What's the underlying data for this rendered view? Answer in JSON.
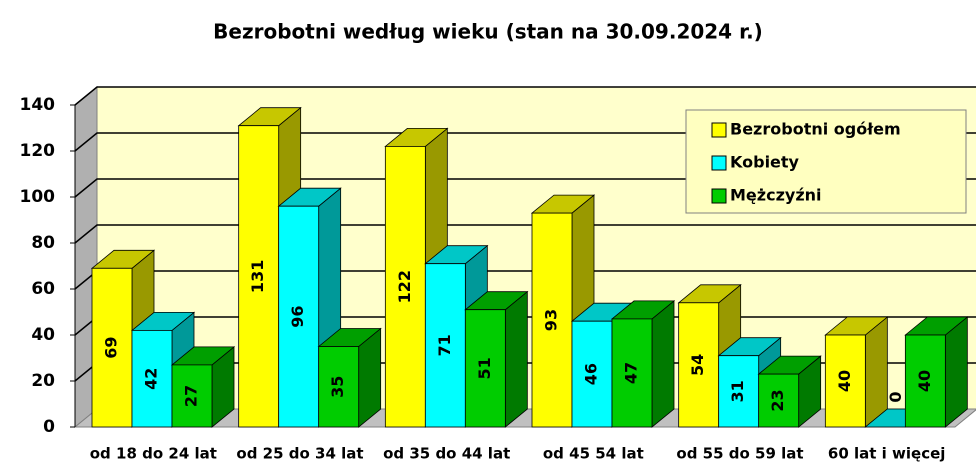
{
  "chart_data": {
    "type": "bar3d",
    "title": "Bezrobotni według wieku (stan na 30.09.2024 r.)",
    "categories": [
      "od 18 do 24 lat",
      "od 25 do 34 lat",
      "od 35 do 44 lat",
      "od 45 54 lat",
      "od 55 do 59 lat",
      "60 lat i więcej"
    ],
    "series": [
      {
        "name": "Bezrobotni ogółem",
        "color": "#ffff00",
        "values": [
          69,
          131,
          122,
          93,
          54,
          40
        ]
      },
      {
        "name": "Kobiety",
        "color": "#00ffff",
        "values": [
          42,
          96,
          71,
          46,
          31,
          0
        ]
      },
      {
        "name": "Mężczyźni",
        "color": "#00cc00",
        "values": [
          27,
          35,
          51,
          47,
          23,
          40
        ]
      }
    ],
    "ylim": [
      0,
      140
    ],
    "yticks": [
      0,
      20,
      40,
      60,
      80,
      100,
      120,
      140
    ],
    "grid": true,
    "legend": "top-right"
  }
}
